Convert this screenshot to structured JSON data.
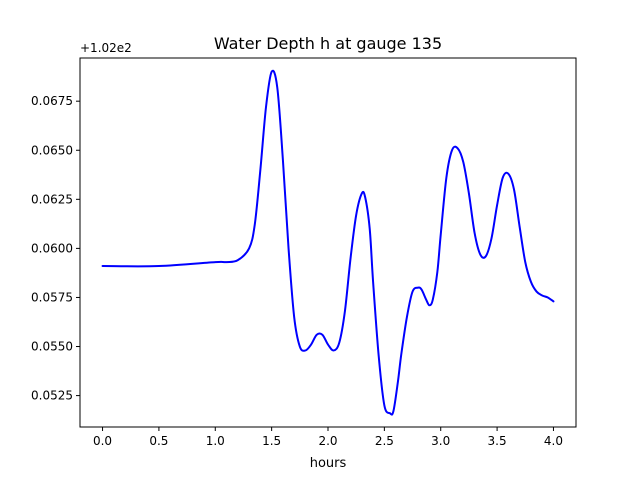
{
  "chart_data": {
    "type": "line",
    "title": "Water Depth h at gauge 135",
    "xlabel": "hours",
    "ylabel": "",
    "offset_text": "+1.02e2",
    "xlim": [
      -0.2,
      4.2
    ],
    "ylim": [
      0.0509,
      0.0697
    ],
    "x_ticks": [
      0.0,
      0.5,
      1.0,
      1.5,
      2.0,
      2.5,
      3.0,
      3.5,
      4.0
    ],
    "x_tick_labels": [
      "0.0",
      "0.5",
      "1.0",
      "1.5",
      "2.0",
      "2.5",
      "3.0",
      "3.5",
      "4.0"
    ],
    "y_ticks": [
      0.0525,
      0.055,
      0.0575,
      0.06,
      0.0625,
      0.065,
      0.0675
    ],
    "y_tick_labels": [
      "0.0525",
      "0.0550",
      "0.0575",
      "0.0600",
      "0.0625",
      "0.0650",
      "0.0675"
    ],
    "grid": false,
    "series": [
      {
        "color": "#0000ff",
        "x": [
          0.0,
          0.5,
          1.0,
          1.1,
          1.2,
          1.3,
          1.35,
          1.4,
          1.45,
          1.5,
          1.55,
          1.6,
          1.65,
          1.7,
          1.75,
          1.8,
          1.85,
          1.9,
          1.95,
          2.0,
          2.05,
          2.1,
          2.15,
          2.2,
          2.25,
          2.3,
          2.33,
          2.37,
          2.4,
          2.45,
          2.5,
          2.55,
          2.58,
          2.62,
          2.65,
          2.7,
          2.75,
          2.8,
          2.83,
          2.87,
          2.9,
          2.93,
          2.97,
          3.0,
          3.05,
          3.1,
          3.15,
          3.2,
          3.25,
          3.3,
          3.35,
          3.4,
          3.45,
          3.5,
          3.55,
          3.6,
          3.65,
          3.7,
          3.75,
          3.8,
          3.85,
          3.9,
          3.95,
          4.0
        ],
        "y": [
          0.0591,
          0.0591,
          0.0593,
          0.0593,
          0.0594,
          0.06,
          0.0612,
          0.064,
          0.0672,
          0.069,
          0.0682,
          0.0645,
          0.06,
          0.0565,
          0.055,
          0.0548,
          0.0551,
          0.0556,
          0.0556,
          0.0551,
          0.0548,
          0.0552,
          0.0568,
          0.0595,
          0.0617,
          0.0628,
          0.0626,
          0.061,
          0.0583,
          0.0545,
          0.052,
          0.0516,
          0.0517,
          0.0532,
          0.0546,
          0.0565,
          0.0578,
          0.058,
          0.0579,
          0.0574,
          0.0571,
          0.0574,
          0.0588,
          0.0607,
          0.0636,
          0.065,
          0.0651,
          0.0644,
          0.0628,
          0.0608,
          0.0597,
          0.0596,
          0.0605,
          0.0622,
          0.0636,
          0.0638,
          0.063,
          0.0611,
          0.0593,
          0.0583,
          0.0578,
          0.0576,
          0.0575,
          0.0573
        ]
      }
    ]
  }
}
